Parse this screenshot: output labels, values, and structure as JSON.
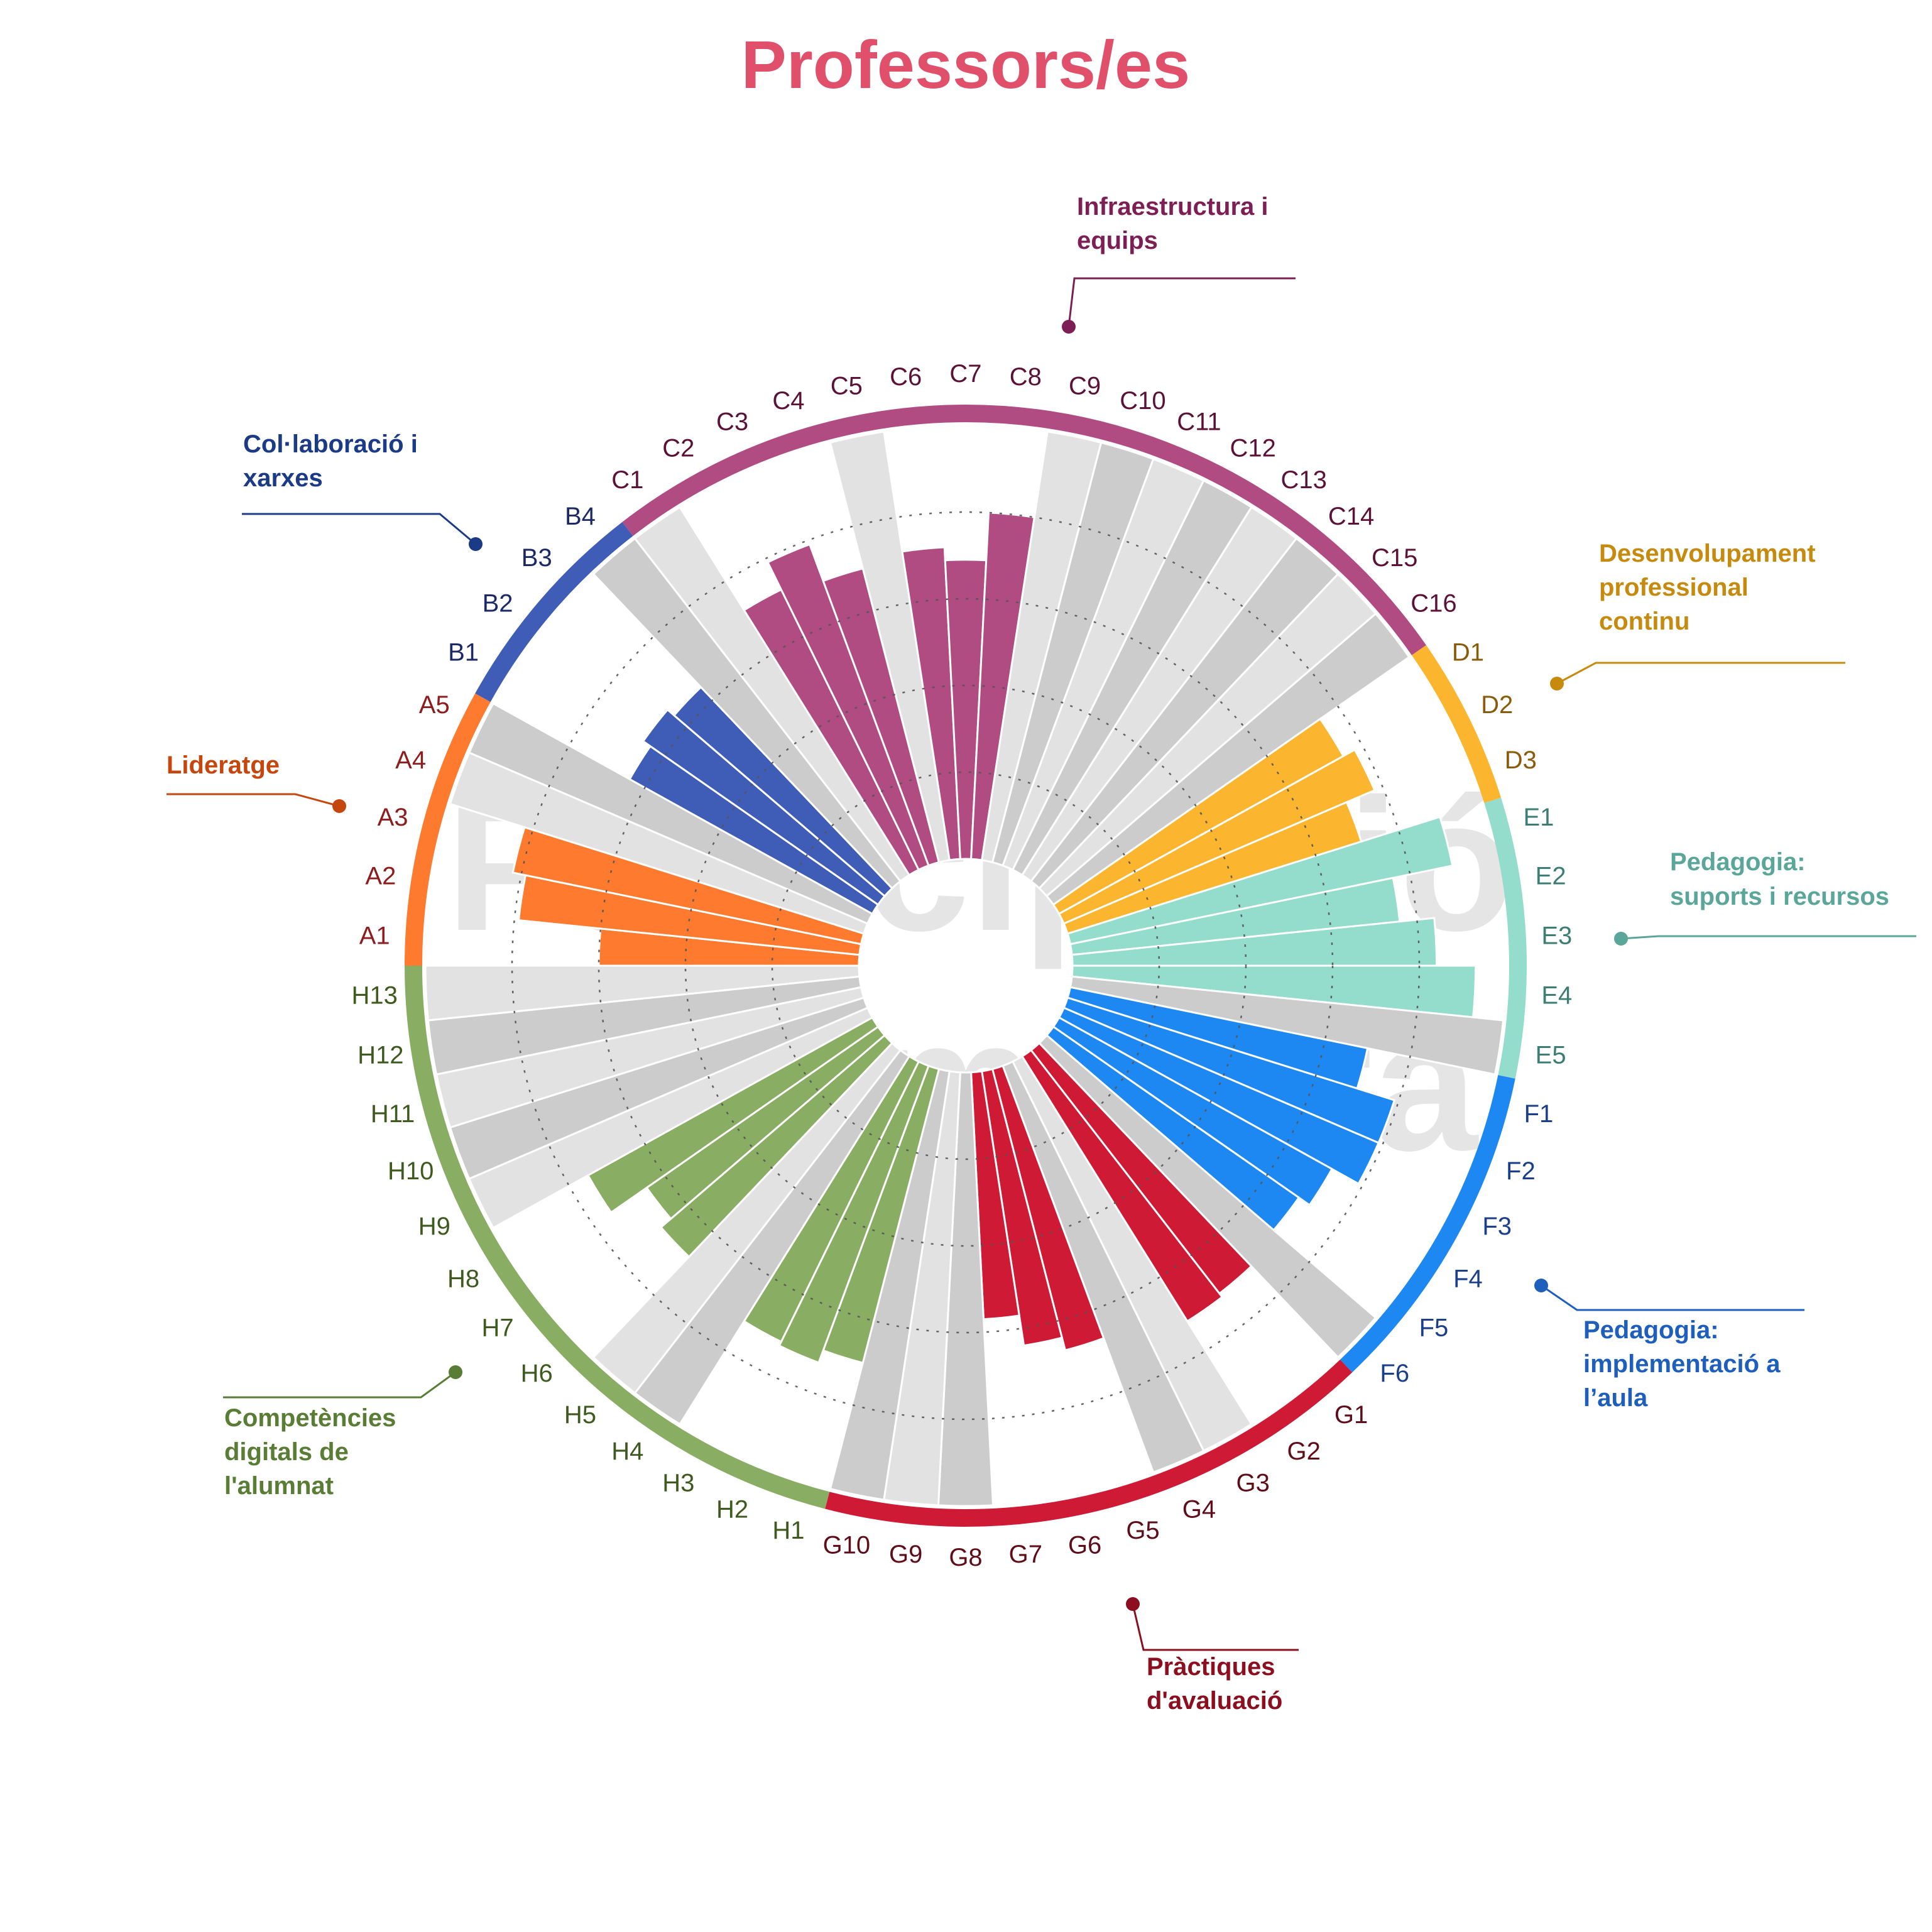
{
  "chart_data": {
    "type": "radial-bar",
    "title": "Professors/es",
    "title_color": "#e0506a",
    "watermark": [
      "Participació",
      "incompleta"
    ],
    "ring_levels": [
      20,
      40,
      60,
      80
    ],
    "ylim": [
      0,
      100
    ],
    "not_available_colors": [
      "#cccccc",
      "#e2e2e2"
    ],
    "categories": [
      {
        "id": "A",
        "name": "Lideratge",
        "color": "#fd7a2e",
        "label_color": "#c5470d",
        "tick_color": "#8e1d1d",
        "items": [
          {
            "code": "A1",
            "value": 60
          },
          {
            "code": "A2",
            "value": 79
          },
          {
            "code": "A3",
            "value": 82
          },
          {
            "code": "A4",
            "value": null
          },
          {
            "code": "A5",
            "value": null
          }
        ]
      },
      {
        "id": "B",
        "name": "Col·laboració i xarxes",
        "color": "#3f5db7",
        "label_color": "#1b3b86",
        "tick_color": "#1b2a66",
        "items": [
          {
            "code": "B1",
            "value": 64
          },
          {
            "code": "B2",
            "value": 66
          },
          {
            "code": "B3",
            "value": 64
          },
          {
            "code": "B4",
            "value": null
          }
        ]
      },
      {
        "id": "C",
        "name": "Infraestructura i equips",
        "color": "#b04c82",
        "label_color": "#7d1f55",
        "tick_color": "#5c1237",
        "items": [
          {
            "code": "C1",
            "value": null
          },
          {
            "code": "C2",
            "value": 72
          },
          {
            "code": "C3",
            "value": 79
          },
          {
            "code": "C4",
            "value": 70
          },
          {
            "code": "C5",
            "value": null
          },
          {
            "code": "C6",
            "value": 72
          },
          {
            "code": "C7",
            "value": 69
          },
          {
            "code": "C8",
            "value": 80
          },
          {
            "code": "C9",
            "value": null
          },
          {
            "code": "C10",
            "value": null
          },
          {
            "code": "C11",
            "value": null
          },
          {
            "code": "C12",
            "value": null
          },
          {
            "code": "C13",
            "value": null
          },
          {
            "code": "C14",
            "value": null
          },
          {
            "code": "C15",
            "value": null
          },
          {
            "code": "C16",
            "value": null
          }
        ]
      },
      {
        "id": "D",
        "name": "Desenvolupament professional continu",
        "color": "#fbb52f",
        "label_color": "#c68a0f",
        "tick_color": "#8a5b0a",
        "items": [
          {
            "code": "D1",
            "value": 75
          },
          {
            "code": "D2",
            "value": 78
          },
          {
            "code": "D3",
            "value": 71
          }
        ]
      },
      {
        "id": "E",
        "name": "Pedagogia: suports i recursos",
        "color": "#94ddcc",
        "label_color": "#5aa698",
        "tick_color": "#3d7e74",
        "items": [
          {
            "code": "E1",
            "value": 90
          },
          {
            "code": "E2",
            "value": 76
          },
          {
            "code": "E3",
            "value": 84
          },
          {
            "code": "E4",
            "value": 93
          },
          {
            "code": "E5",
            "value": null
          }
        ]
      },
      {
        "id": "F",
        "name": "Pedagogia: implementació a l’aula",
        "color": "#1e88f2",
        "label_color": "#1e5fbe",
        "tick_color": "#1b3f8a",
        "items": [
          {
            "code": "F1",
            "value": 70
          },
          {
            "code": "F2",
            "value": 79
          },
          {
            "code": "F3",
            "value": 79
          },
          {
            "code": "F4",
            "value": 72
          },
          {
            "code": "F5",
            "value": 69
          },
          {
            "code": "F6",
            "value": null
          }
        ]
      },
      {
        "id": "G",
        "name": "Pràctiques d'avaluació",
        "color": "#cf1a35",
        "label_color": "#8c0f1f",
        "tick_color": "#5f0d18",
        "items": [
          {
            "code": "G1",
            "value": 71
          },
          {
            "code": "G2",
            "value": 72
          },
          {
            "code": "G3",
            "value": null
          },
          {
            "code": "G4",
            "value": null
          },
          {
            "code": "G5",
            "value": 67
          },
          {
            "code": "G6",
            "value": 64
          },
          {
            "code": "G7",
            "value": 57
          },
          {
            "code": "G8",
            "value": null
          },
          {
            "code": "G9",
            "value": null
          },
          {
            "code": "G10",
            "value": null
          }
        ]
      },
      {
        "id": "H",
        "name": "Competències digitals de l'alumnat",
        "color": "#8aad64",
        "label_color": "#5a7d35",
        "tick_color": "#3f5a1f",
        "items": [
          {
            "code": "H1",
            "value": 70
          },
          {
            "code": "H2",
            "value": 73
          },
          {
            "code": "H3",
            "value": 72
          },
          {
            "code": "H4",
            "value": null
          },
          {
            "code": "H5",
            "value": null
          },
          {
            "code": "H6",
            "value": 68
          },
          {
            "code": "H7",
            "value": 65
          },
          {
            "code": "H8",
            "value": 75
          },
          {
            "code": "H9",
            "value": null
          },
          {
            "code": "H10",
            "value": null
          },
          {
            "code": "H11",
            "value": null
          },
          {
            "code": "H12",
            "value": null
          },
          {
            "code": "H13",
            "value": null
          }
        ]
      }
    ]
  }
}
